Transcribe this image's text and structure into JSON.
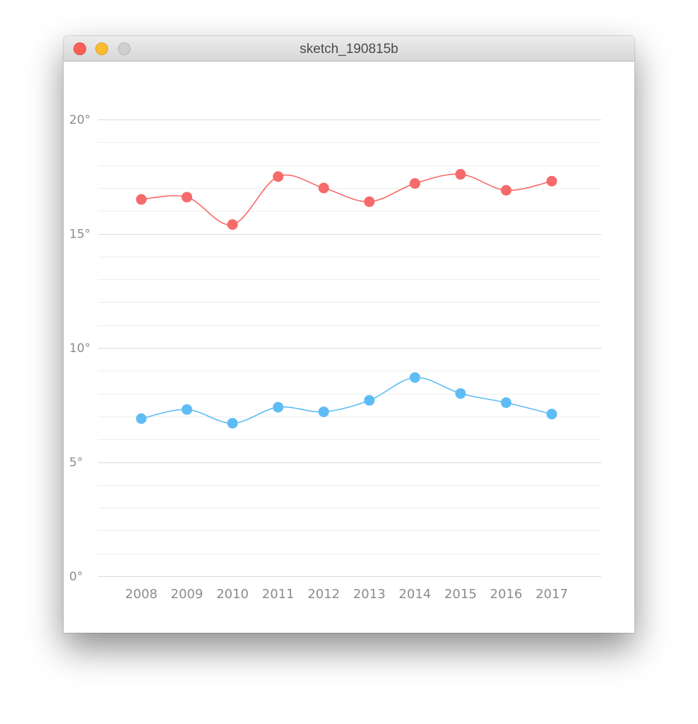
{
  "window": {
    "title": "sketch_190815b"
  },
  "chart_data": {
    "type": "line",
    "title": "",
    "xlabel": "",
    "ylabel": "",
    "x": [
      "2008",
      "2009",
      "2010",
      "2011",
      "2012",
      "2013",
      "2014",
      "2015",
      "2016",
      "2017"
    ],
    "ylim": [
      0,
      20
    ],
    "y_ticks": [
      "0°",
      "5°",
      "10°",
      "15°",
      "20°"
    ],
    "grid": true,
    "curve": "smooth",
    "series": [
      {
        "color": "#f66a6a",
        "values": [
          16.5,
          16.6,
          15.4,
          17.5,
          17.0,
          16.4,
          17.2,
          17.6,
          16.9,
          17.3
        ]
      },
      {
        "color": "#5ebcf5",
        "values": [
          6.9,
          7.3,
          6.7,
          7.4,
          7.2,
          7.7,
          8.7,
          8.0,
          7.6,
          7.1
        ]
      }
    ],
    "colors": {
      "grid_major": "#d9d9d9",
      "grid_minor": "#eeeeee",
      "tick_label": "#8c8c8c"
    }
  }
}
